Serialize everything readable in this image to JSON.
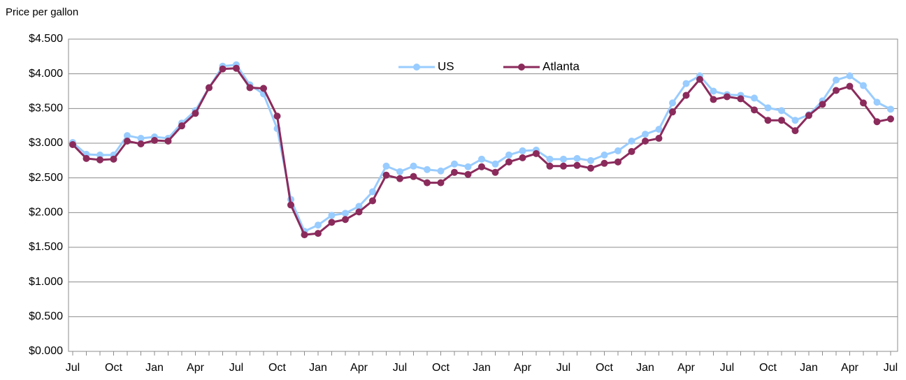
{
  "chart_data": {
    "type": "line",
    "y_label": "Price per gallon",
    "categories": [
      "Jul",
      null,
      null,
      "Oct",
      null,
      null,
      "Jan",
      null,
      null,
      "Apr",
      null,
      null,
      "Jul",
      null,
      null,
      "Oct",
      null,
      null,
      "Jan",
      null,
      null,
      "Apr",
      null,
      null,
      "Jul",
      null,
      null,
      "Oct",
      null,
      null,
      "Jan",
      null,
      null,
      "Apr",
      null,
      null,
      "Jul",
      null,
      null,
      "Oct",
      null,
      null,
      "Jan",
      null,
      null,
      "Apr",
      null,
      null,
      "Jul",
      null,
      null,
      "Oct",
      null,
      null,
      "Jan",
      null,
      null,
      "Apr",
      null,
      null,
      "Jul"
    ],
    "series": [
      {
        "name": "US",
        "color": "#99ccff",
        "values": [
          3.01,
          2.84,
          2.83,
          2.83,
          3.11,
          3.07,
          3.09,
          3.07,
          3.29,
          3.47,
          3.8,
          4.11,
          4.13,
          3.84,
          3.71,
          3.21,
          2.19,
          1.73,
          1.82,
          1.96,
          1.99,
          2.09,
          2.3,
          2.67,
          2.59,
          2.67,
          2.62,
          2.6,
          2.7,
          2.66,
          2.77,
          2.7,
          2.83,
          2.89,
          2.9,
          2.77,
          2.77,
          2.78,
          2.75,
          2.83,
          2.89,
          3.03,
          3.13,
          3.2,
          3.58,
          3.86,
          3.97,
          3.75,
          3.7,
          3.69,
          3.65,
          3.51,
          3.47,
          3.33,
          3.41,
          3.61,
          3.91,
          3.97,
          3.83,
          3.59,
          3.49
        ]
      },
      {
        "name": "Atlanta",
        "color": "#8b2b5c",
        "values": [
          2.98,
          2.78,
          2.76,
          2.77,
          3.03,
          2.99,
          3.04,
          3.03,
          3.25,
          3.43,
          3.8,
          4.07,
          4.08,
          3.8,
          3.79,
          3.39,
          2.11,
          1.68,
          1.7,
          1.86,
          1.9,
          2.01,
          2.17,
          2.54,
          2.49,
          2.52,
          2.43,
          2.43,
          2.58,
          2.55,
          2.66,
          2.58,
          2.73,
          2.79,
          2.85,
          2.67,
          2.67,
          2.68,
          2.64,
          2.71,
          2.73,
          2.88,
          3.03,
          3.07,
          3.45,
          3.69,
          3.92,
          3.63,
          3.67,
          3.64,
          3.48,
          3.33,
          3.33,
          3.18,
          3.4,
          3.56,
          3.76,
          3.82,
          3.58,
          3.31,
          3.35
        ]
      }
    ],
    "ylim": [
      0,
      4.5
    ],
    "yticks": [
      {
        "value": 0,
        "label": "$0.000"
      },
      {
        "value": 0.5,
        "label": "$0.500"
      },
      {
        "value": 1,
        "label": "$1.000"
      },
      {
        "value": 1.5,
        "label": "$1.500"
      },
      {
        "value": 2,
        "label": "$2.000"
      },
      {
        "value": 2.5,
        "label": "$2.500"
      },
      {
        "value": 3,
        "label": "$3.000"
      },
      {
        "value": 3.5,
        "label": "$3.500"
      },
      {
        "value": 4,
        "label": "$4.000"
      },
      {
        "value": 4.5,
        "label": "$4.500"
      }
    ],
    "grid": true,
    "legend": "top"
  }
}
